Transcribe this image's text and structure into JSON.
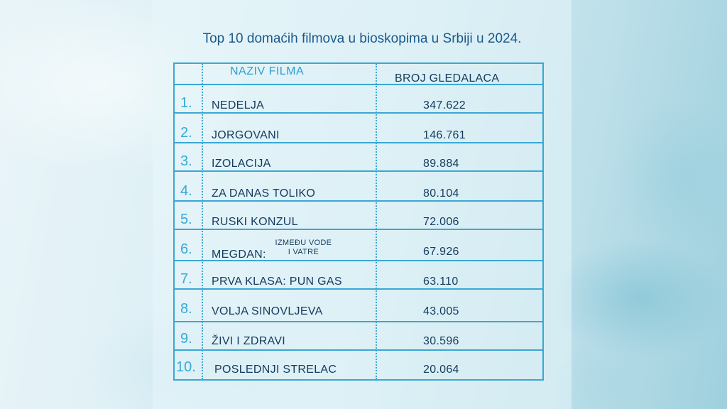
{
  "title": "Top 10 domaćih filmova u bioskopima u Srbiji u 2024.",
  "table": {
    "headers": {
      "name": "NAZIV FILMA",
      "count": "BROJ GLEDALACA"
    },
    "rows": [
      {
        "rank": "1.",
        "film": "NEDELJA",
        "count": "347.622"
      },
      {
        "rank": "2.",
        "film": "JORGOVANI",
        "count": "146.761"
      },
      {
        "rank": "3.",
        "film": "IZOLACIJA",
        "count": "89.884"
      },
      {
        "rank": "4.",
        "film": "ZA DANAS TOLIKO",
        "count": "80.104"
      },
      {
        "rank": "5.",
        "film": "RUSKI KONZUL",
        "count": "72.006"
      },
      {
        "rank": "6.",
        "film": "MEGDAN:",
        "film_sub_1": "IZMEĐU VODE",
        "film_sub_2": "I VATRE",
        "count": "67.926"
      },
      {
        "rank": "7.",
        "film": "PRVA KLASA: PUN GAS",
        "count": "63.110"
      },
      {
        "rank": "8.",
        "film": "VOLJA SINOVLJEVA",
        "count": "43.005"
      },
      {
        "rank": "9.",
        "film": "ŽIVI I ZDRAVI",
        "count": "30.596"
      },
      {
        "rank": "10.",
        "film": "POSLEDNJI STRELAC",
        "count": "20.064"
      }
    ]
  },
  "colors": {
    "title": "#1a5a8a",
    "border": "#3aa7d4",
    "header": "#2aa0d3",
    "rank": "#38a8d6",
    "text": "#143b5e"
  }
}
